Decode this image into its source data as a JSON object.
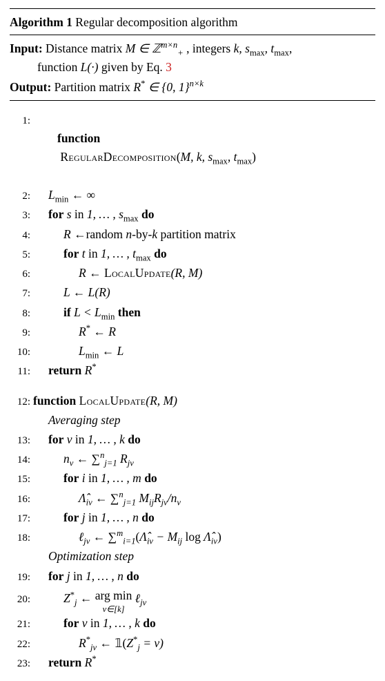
{
  "font": {
    "family": "Times New Roman",
    "base_size_pt": 17.5,
    "lineno_size_pt": 15
  },
  "colors": {
    "text": "#000000",
    "bg": "#ffffff",
    "rule": "#000000",
    "eqref": "#cc2222"
  },
  "title": {
    "label": "Algorithm 1",
    "name": "Regular decomposition algorithm"
  },
  "input": {
    "label": "Input:",
    "line1_a": "Distance matrix ",
    "line1_b": ", integers ",
    "line1_c": ",",
    "line2_a": "function ",
    "line2_b": " given by Eq. ",
    "eqref": "3",
    "math": {
      "M_in": "M ∈ ℤ",
      "Z_sup": "m×n",
      "Z_sub": "+",
      "ints": "k, s",
      "smax_sub": "max",
      "t": ", t",
      "tmax_sub": "max",
      "L": "L(·)"
    }
  },
  "output": {
    "label": "Output:",
    "text_a": "Partition matrix ",
    "math": {
      "R": "R",
      "star": "*",
      "in": " ∈ {0, 1}",
      "sup": "n×k"
    }
  },
  "fn1": {
    "kw_function": "function",
    "name": "RegularDecomposition",
    "args_open": "(",
    "args": "M, k, s",
    "smax_sub": "max",
    "sep": ", t",
    "tmax_sub": "max",
    "args_close": ")"
  },
  "l2": {
    "lhs": "L",
    "sub": "min",
    "arrow": " ← ∞"
  },
  "l3": {
    "kw_for": "for",
    "var": " s ",
    "kw_in": "in",
    "range": " 1, … , s",
    "sub": "max",
    "kw_do": " do"
  },
  "l4": {
    "lhs": "R ←",
    "text": "random ",
    "nk": "n",
    "by": "-by-",
    "k": "k",
    "text2": " partition matrix"
  },
  "l5": {
    "kw_for": "for",
    "var": " t ",
    "kw_in": "in",
    "range": " 1, … , t",
    "sub": "max",
    "kw_do": " do"
  },
  "l6": {
    "lhs": "R ← ",
    "call": "LocalUpdate",
    "args": "(R, M)"
  },
  "l7": {
    "lhs": "L ← L(R)"
  },
  "l8": {
    "kw_if": "if",
    "cond": " L < L",
    "sub": "min",
    "kw_then": " then"
  },
  "l9": {
    "lhs": "R",
    "star": "*",
    "arrow": " ← R"
  },
  "l10": {
    "lhs": "L",
    "sub": "min",
    "arrow": " ← L"
  },
  "l11": {
    "kw_return": "return",
    "val": " R",
    "star": "*"
  },
  "fn2": {
    "kw_function": "function",
    "name": "LocalUpdate",
    "args": "(R, M)"
  },
  "avg_label": "Averaging step",
  "l13": {
    "kw_for": "for",
    "var": " v ",
    "kw_in": "in",
    "range": " 1, … , k",
    "kw_do": " do"
  },
  "l14": {
    "expr": "n",
    "sub_v": "v",
    "arrow": " ← ∑",
    "sum_sup": "n",
    "sum_sub": "j=1",
    "tail": " R",
    "R_sub": "jv"
  },
  "l15": {
    "kw_for": "for",
    "var": " i ",
    "kw_in": "in",
    "range": " 1, … , m",
    "kw_do": " do"
  },
  "l16": {
    "lhs_hat": "Λ̂",
    "lhs_sub": "iv",
    "arrow": " ← ∑",
    "sum_sup": "n",
    "sum_sub": "j=1",
    "mid": " M",
    "M_sub": "ij",
    "R": "R",
    "R_sub": "jv",
    "over": "/n",
    "n_sub": "v"
  },
  "l17": {
    "kw_for": "for",
    "var": " j ",
    "kw_in": "in",
    "range": " 1, … , n",
    "kw_do": " do"
  },
  "l18": {
    "lhs": "ℓ",
    "lhs_sub": "jv",
    "arrow": " ← ∑",
    "sum_sup": "m",
    "sum_sub": "i=1",
    "open": "(",
    "L1": "Λ̂",
    "L1_sub": "iv",
    "minus": " − M",
    "M_sub": "ij",
    "log": " log ",
    "L2": "Λ̂",
    "L2_sub": "iv",
    "close": ")"
  },
  "opt_label": "Optimization step",
  "l19": {
    "kw_for": "for",
    "var": " j ",
    "kw_in": "in",
    "range": " 1, … , n",
    "kw_do": " do"
  },
  "l20": {
    "lhs": "Z",
    "star": "*",
    "sub": "j",
    "arrow": " ← ",
    "argmin_top": "arg min",
    "argmin_bot": "v∈[k]",
    "ell": " ℓ",
    "ell_sub": "jv"
  },
  "l21": {
    "kw_for": "for",
    "var": " v ",
    "kw_in": "in",
    "range": " 1, … , k",
    "kw_do": " do"
  },
  "l22": {
    "lhs": "R",
    "star": "*",
    "sub": "jv",
    "arrow": " ← ",
    "ind": "𝟙(",
    "Z": "Z",
    "Zstar": "*",
    "Zsub": "j",
    "eq": " = v)"
  },
  "l23": {
    "kw_return": "return",
    "val": " R",
    "star": "*"
  },
  "lineno": {
    "1": "1:",
    "2": "2:",
    "3": "3:",
    "4": "4:",
    "5": "5:",
    "6": "6:",
    "7": "7:",
    "8": "8:",
    "9": "9:",
    "10": "10:",
    "11": "11:",
    "12": "12:",
    "13": "13:",
    "14": "14:",
    "15": "15:",
    "16": "16:",
    "17": "17:",
    "18": "18:",
    "19": "19:",
    "20": "20:",
    "21": "21:",
    "22": "22:",
    "23": "23:"
  }
}
